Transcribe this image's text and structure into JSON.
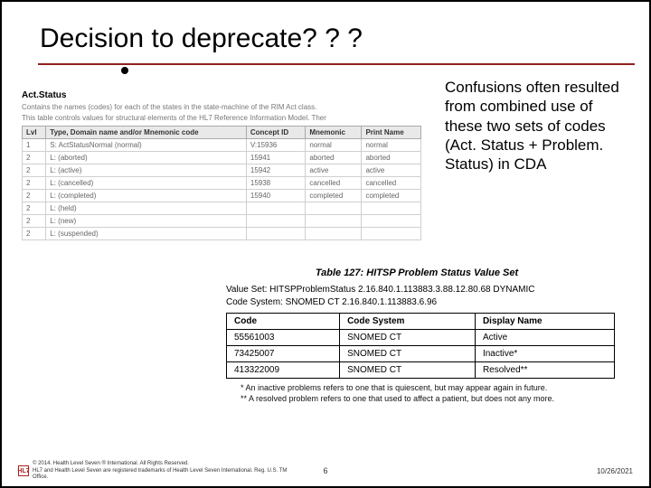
{
  "title": "Decision to deprecate? ? ?",
  "callout": "Confusions often resulted from combined use of these two sets of codes (Act. Status + Problem. Status) in CDA",
  "act": {
    "heading": "Act.Status",
    "desc1": "Contains the names (codes) for each of the states in the state-machine of the RIM Act class.",
    "desc2": "This table controls values for structural elements of the HL7 Reference Information Model. Ther",
    "columns": [
      "Lvl",
      "Type, Domain name and/or Mnemonic code",
      "Concept ID",
      "Mnemonic",
      "Print Name"
    ],
    "rows": [
      [
        "1",
        "S:  ActStatusNormal  (normal)",
        "V:15936",
        "normal",
        "normal"
      ],
      [
        "2",
        "L:  (aborted)",
        "15941",
        "aborted",
        "aborted"
      ],
      [
        "2",
        "L:  (active)",
        "15942",
        "active",
        "active"
      ],
      [
        "2",
        "L:  (cancelled)",
        "15938",
        "cancelled",
        "cancelled"
      ],
      [
        "2",
        "L:  (completed)",
        "15940",
        "completed",
        "completed"
      ],
      [
        "2",
        "L:  (held)",
        "",
        "",
        ""
      ],
      [
        "2",
        "L:  (new)",
        "",
        "",
        ""
      ],
      [
        "2",
        "L:  (suspended)",
        "",
        "",
        ""
      ]
    ]
  },
  "problem": {
    "caption": "Table 127: HITSP Problem Status Value Set",
    "value_set": "Value Set: HITSPProblemStatus 2.16.840.1.113883.3.88.12.80.68 DYNAMIC",
    "code_system": "Code System: SNOMED CT 2.16.840.1.113883.6.96",
    "columns": [
      "Code",
      "Code System",
      "Display Name"
    ],
    "rows": [
      [
        "55561003",
        "SNOMED CT",
        "Active"
      ],
      [
        "73425007",
        "SNOMED CT",
        "Inactive*"
      ],
      [
        "413322009",
        "SNOMED CT",
        "Resolved**"
      ]
    ],
    "note1": "*   An inactive problems refers to one that is quiescent, but may appear again in future.",
    "note2": "**  A resolved problem refers to one that used to affect a patient, but does not any more."
  },
  "footer": {
    "logo": "HL7",
    "copyright_line1": "© 2014. Health Level Seven ® International. All Rights Reserved.",
    "copyright_line2": "HL7 and Health Level Seven are registered trademarks of Health Level Seven International. Reg. U.S. TM Office.",
    "page": "6",
    "date": "10/26/2021"
  },
  "style": {
    "rule_color": "#902020",
    "table_header_bg": "#e9e9e9",
    "border_color": "#000000"
  }
}
